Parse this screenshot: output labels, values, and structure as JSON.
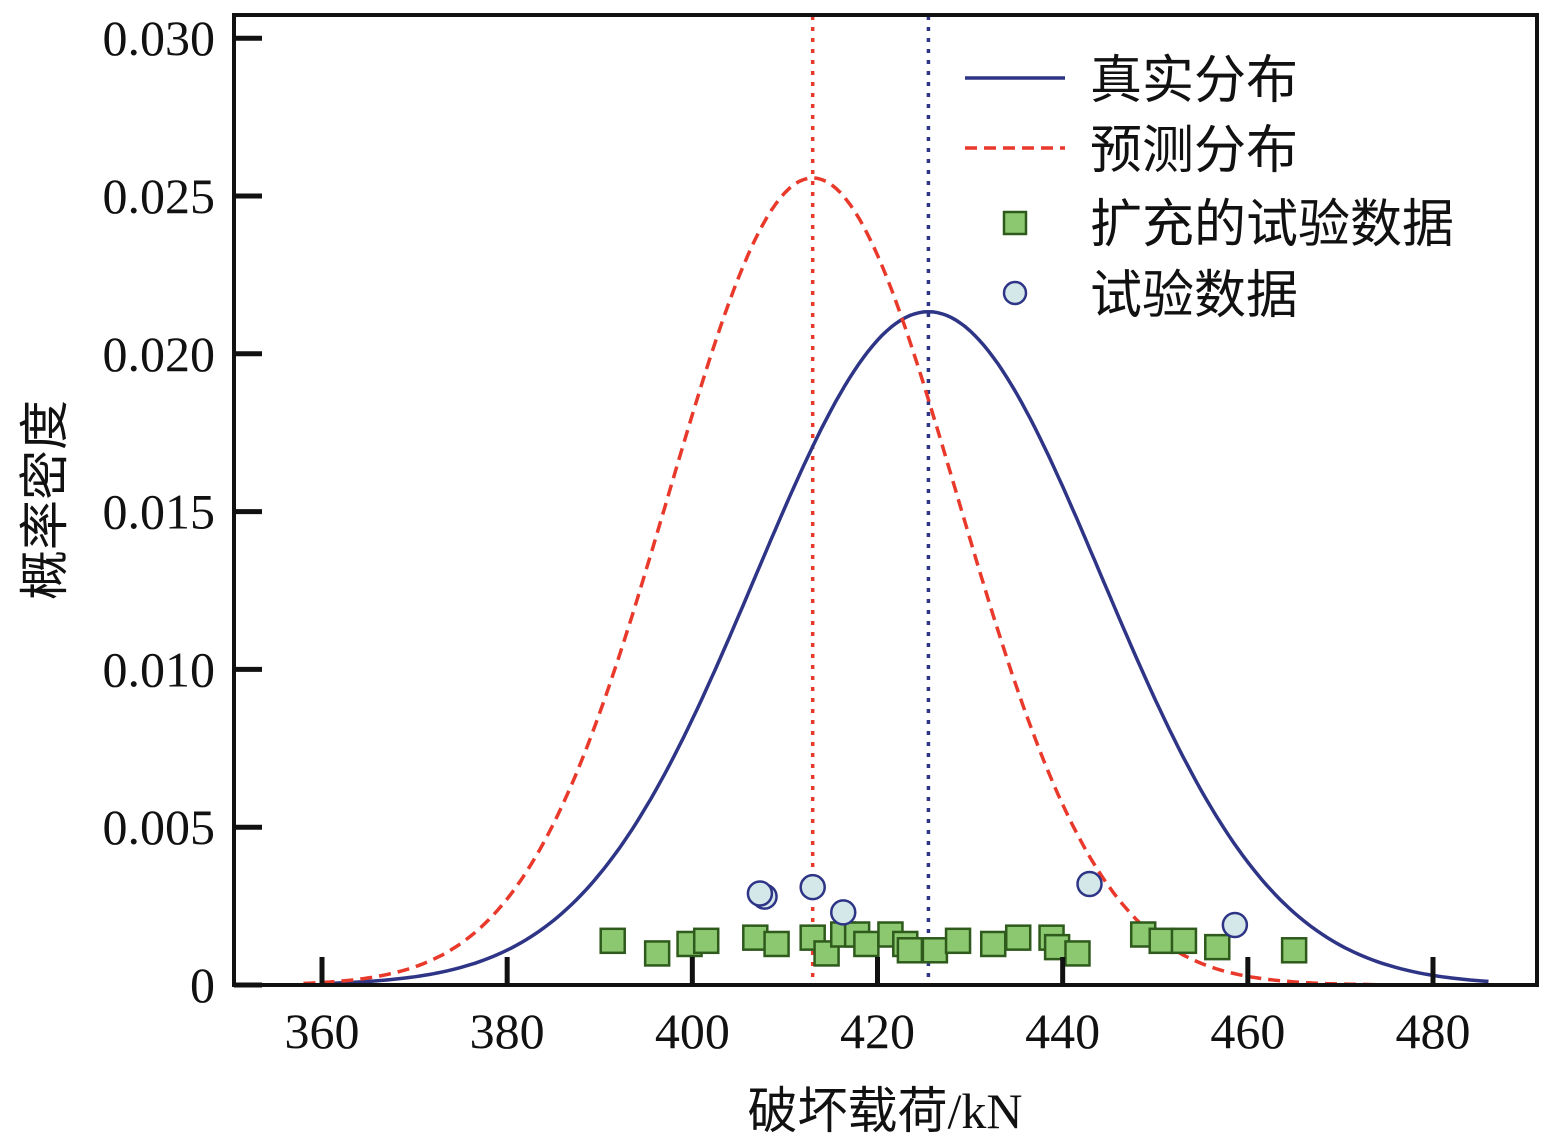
{
  "chart_data": {
    "type": "line",
    "title": "",
    "xlabel": "破坏载荷/kN",
    "ylabel": "概率密度",
    "xlim": [
      350,
      490
    ],
    "ylim": [
      0,
      0.0305
    ],
    "xticks": [
      360,
      380,
      400,
      420,
      440,
      460,
      480
    ],
    "xtick_labels": [
      "360",
      "380",
      "400",
      "420",
      "440",
      "460",
      "480"
    ],
    "yticks": [
      0,
      0.005,
      0.01,
      0.015,
      0.02,
      0.025,
      0.03
    ],
    "ytick_labels": [
      "0",
      "0.005",
      "0.010",
      "0.015",
      "0.020",
      "0.025",
      "0.030"
    ],
    "legend_position": "top-right",
    "series": [
      {
        "name": "真实分布",
        "kind": "normal-pdf",
        "mean": 425.5,
        "std": 18.7,
        "x_range": [
          360,
          486
        ],
        "color": "#2e3586",
        "style": "solid"
      },
      {
        "name": "预测分布",
        "kind": "normal-pdf",
        "mean": 413.0,
        "std": 15.6,
        "x_range": [
          358,
          485
        ],
        "color": "#e8392b",
        "style": "dashed"
      },
      {
        "name": "扩充的试验数据",
        "kind": "scatter",
        "marker": "square",
        "color": "#8cc870",
        "edge": "#2e5a1c",
        "points": [
          [
            391.4,
            0.0014
          ],
          [
            396.2,
            0.001
          ],
          [
            399.7,
            0.0013
          ],
          [
            401.5,
            0.0014
          ],
          [
            406.8,
            0.0015
          ],
          [
            409.1,
            0.0013
          ],
          [
            413.0,
            0.0015
          ],
          [
            414.5,
            0.001
          ],
          [
            416.3,
            0.0016
          ],
          [
            417.8,
            0.0016
          ],
          [
            418.8,
            0.0013
          ],
          [
            421.4,
            0.0016
          ],
          [
            423.0,
            0.0013
          ],
          [
            423.5,
            0.0011
          ],
          [
            426.2,
            0.0011
          ],
          [
            428.7,
            0.0014
          ],
          [
            432.5,
            0.0013
          ],
          [
            435.2,
            0.0015
          ],
          [
            438.8,
            0.0015
          ],
          [
            439.4,
            0.0012
          ],
          [
            441.6,
            0.001
          ],
          [
            448.7,
            0.0016
          ],
          [
            450.7,
            0.0014
          ],
          [
            453.1,
            0.0014
          ],
          [
            456.7,
            0.0012
          ],
          [
            465.0,
            0.0011
          ]
        ]
      },
      {
        "name": "试验数据",
        "kind": "scatter",
        "marker": "circle",
        "color": "#d4e8ea",
        "edge": "#2e3586",
        "points": [
          [
            407.8,
            0.0028
          ],
          [
            407.3,
            0.0029
          ],
          [
            413.0,
            0.0031
          ],
          [
            416.3,
            0.0023
          ],
          [
            442.9,
            0.0032
          ],
          [
            458.6,
            0.0019
          ]
        ]
      }
    ],
    "vlines": [
      {
        "x": 413.0,
        "color": "#e8392b",
        "style": "dotted"
      },
      {
        "x": 425.5,
        "color": "#2e3586",
        "style": "dotted"
      }
    ]
  }
}
